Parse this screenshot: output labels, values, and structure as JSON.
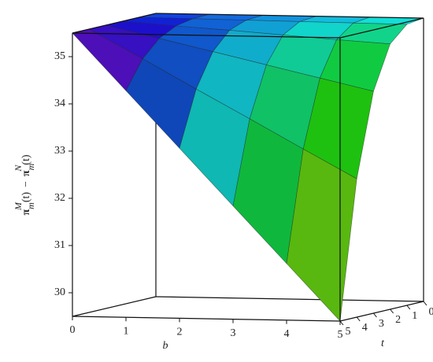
{
  "chart_data": {
    "type": "surface",
    "xlabel": "b",
    "ylabel": "t",
    "zlabel": {
      "left": {
        "symbol": "π",
        "sub": "m",
        "sup": "M",
        "arg": "(t)"
      },
      "operator": "−",
      "right": {
        "symbol": "π",
        "sub": "m",
        "sup": "N",
        "arg": "(t)"
      }
    },
    "x": [
      0,
      1,
      2,
      3,
      4,
      5
    ],
    "y": [
      0,
      1,
      2,
      3,
      4,
      5
    ],
    "z": [
      [
        35.5,
        35.5,
        35.5,
        35.5,
        35.5,
        35.5
      ],
      [
        35.5,
        35.49,
        35.42,
        35.24,
        34.89,
        34.3
      ],
      [
        35.5,
        35.48,
        35.35,
        34.98,
        34.27,
        33.1
      ],
      [
        35.5,
        35.47,
        35.27,
        34.72,
        33.66,
        31.9
      ],
      [
        35.5,
        35.46,
        35.19,
        34.46,
        33.04,
        30.7
      ],
      [
        35.5,
        35.45,
        35.12,
        34.2,
        32.43,
        29.5
      ]
    ],
    "xlim": [
      0,
      5
    ],
    "ylim": [
      0,
      5
    ],
    "zlim": [
      29.5,
      35.5
    ],
    "xticks": [
      0,
      1,
      2,
      3,
      4,
      5
    ],
    "yticks": [
      0,
      1,
      2,
      3,
      4,
      5
    ],
    "zticks": [
      30,
      31,
      32,
      33,
      34,
      35
    ]
  }
}
